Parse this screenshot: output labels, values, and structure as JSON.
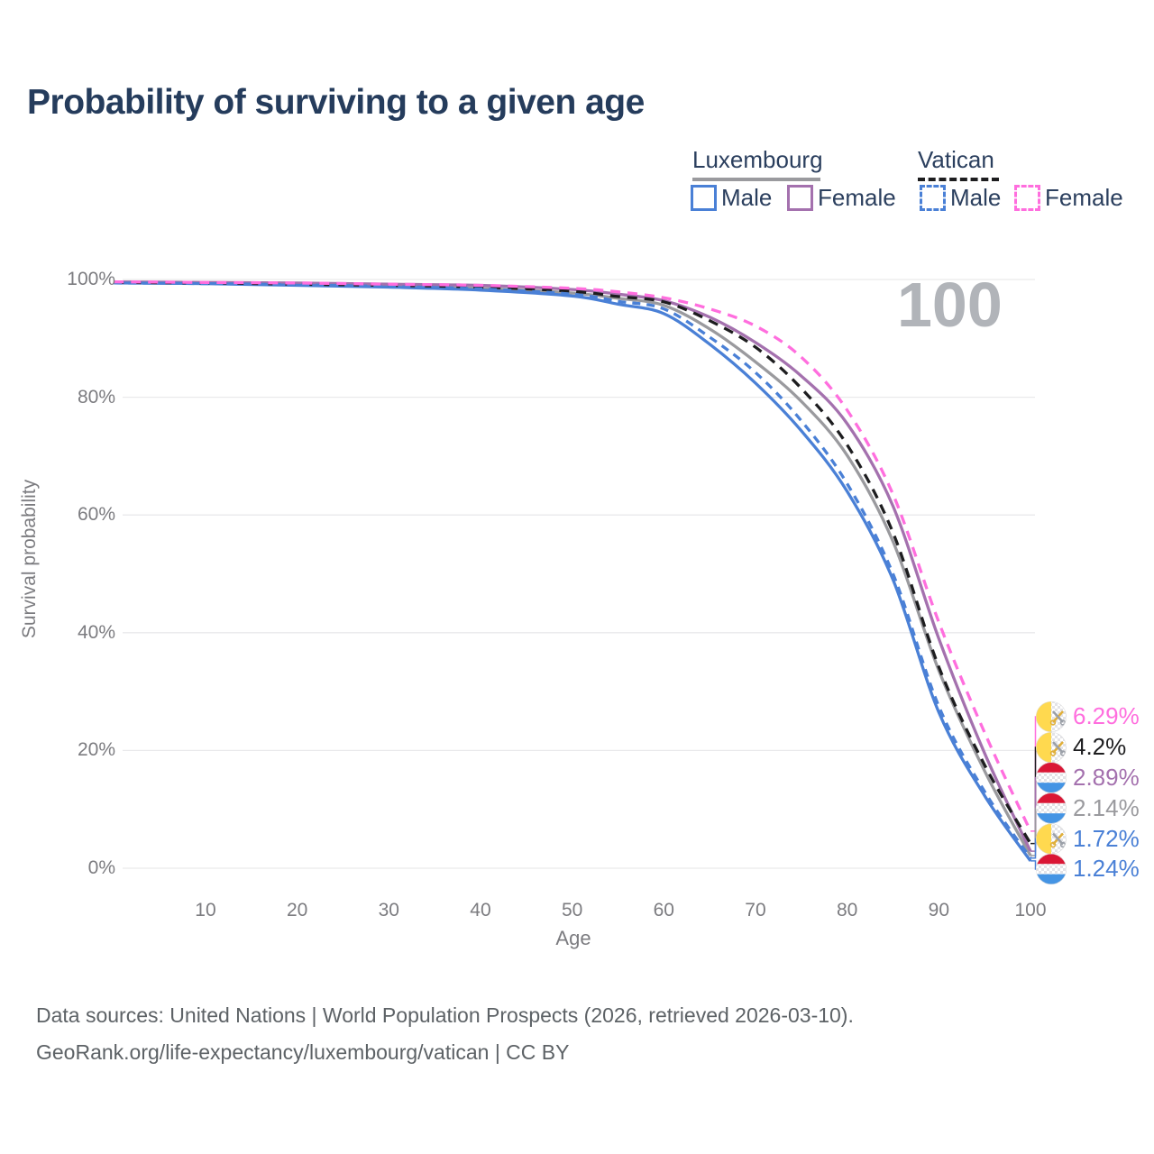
{
  "title": "Probability of surviving to a given age",
  "watermark": "100",
  "legend": {
    "groups": [
      {
        "name": "Luxembourg",
        "underline_series": "luxembourg-total",
        "entries": [
          {
            "label": "Male",
            "series": "luxembourg-male"
          },
          {
            "label": "Female",
            "series": "luxembourg-female"
          }
        ]
      },
      {
        "name": "Vatican",
        "underline_series": "vatican-total",
        "entries": [
          {
            "label": "Male",
            "series": "vatican-male"
          },
          {
            "label": "Female",
            "series": "vatican-female"
          }
        ]
      }
    ]
  },
  "chart_data": {
    "type": "line",
    "title": "Probability of surviving to a given age",
    "xlabel": "Age",
    "ylabel": "Survival probability",
    "xlim": [
      0,
      100
    ],
    "ylim": [
      0,
      100
    ],
    "grid": "horizontal",
    "legend_position": "top-right",
    "x_ticks": [
      "10",
      "20",
      "30",
      "40",
      "50",
      "60",
      "70",
      "80",
      "90",
      "100"
    ],
    "y_ticks": [
      "100%",
      "80%",
      "60%",
      "40%",
      "20%",
      "0%"
    ],
    "x": [
      0,
      10,
      20,
      30,
      40,
      50,
      55,
      60,
      65,
      70,
      75,
      80,
      85,
      90,
      95,
      100
    ],
    "series": [
      {
        "key": "luxembourg-total",
        "name": "Luxembourg Total",
        "color": "#9a9a9e",
        "style": "solid",
        "values": [
          99.5,
          99.4,
          99.2,
          98.9,
          98.5,
          97.7,
          96.8,
          95.6,
          91.6,
          86.0,
          79.3,
          70.1,
          55.5,
          33.6,
          16.5,
          2.14
        ]
      },
      {
        "key": "luxembourg-female",
        "name": "Luxembourg Female",
        "color": "#a471ae",
        "style": "solid",
        "values": [
          99.6,
          99.5,
          99.4,
          99.2,
          99.0,
          98.3,
          97.5,
          96.4,
          93.6,
          89.3,
          83.6,
          75.5,
          61.5,
          39.0,
          19.5,
          2.89
        ]
      },
      {
        "key": "luxembourg-male",
        "name": "Luxembourg Male",
        "color": "#4a80d6",
        "style": "solid",
        "values": [
          99.4,
          99.3,
          99.0,
          98.7,
          98.2,
          97.2,
          95.8,
          94.2,
          89.0,
          82.4,
          74.3,
          64.0,
          49.0,
          26.5,
          12.3,
          1.24
        ]
      },
      {
        "key": "vatican-total",
        "name": "Vatican Total",
        "color": "#1d1d1f",
        "style": "dashed",
        "values": [
          99.5,
          99.4,
          99.2,
          99.0,
          98.7,
          98.0,
          97.1,
          96.2,
          93.0,
          88.5,
          81.5,
          71.9,
          57.0,
          34.2,
          17.5,
          4.2
        ]
      },
      {
        "key": "vatican-male",
        "name": "Vatican Male",
        "color": "#4a80d6",
        "style": "dashed",
        "values": [
          99.4,
          99.3,
          99.1,
          98.8,
          98.4,
          97.5,
          96.3,
          95.0,
          90.2,
          84.2,
          76.0,
          65.3,
          50.0,
          27.5,
          13.0,
          1.72
        ]
      },
      {
        "key": "vatican-female",
        "name": "Vatican Female",
        "color": "#ff6ede",
        "style": "dashed",
        "values": [
          99.6,
          99.5,
          99.4,
          99.2,
          99.0,
          98.5,
          97.9,
          96.9,
          95.0,
          92.1,
          86.8,
          77.8,
          63.5,
          41.8,
          23.0,
          6.29
        ]
      }
    ],
    "end_labels": [
      {
        "series": "vatican-female",
        "flag": "vatican",
        "value": "6.29%"
      },
      {
        "series": "vatican-total",
        "flag": "vatican",
        "value": "4.2%"
      },
      {
        "series": "luxembourg-female",
        "flag": "luxembourg",
        "value": "2.89%"
      },
      {
        "series": "luxembourg-total",
        "flag": "luxembourg",
        "value": "2.14%"
      },
      {
        "series": "vatican-male",
        "flag": "vatican",
        "value": "1.72%"
      },
      {
        "series": "luxembourg-male",
        "flag": "luxembourg",
        "value": "1.24%"
      }
    ],
    "flag_colors": {
      "vatican_yellow": "#ffd94f",
      "luxembourg_red": "#da1635",
      "luxembourg_blue": "#4494e4"
    }
  },
  "footer": {
    "line1": "Data sources: United Nations | World Population Prospects (2026, retrieved 2026-03-10).",
    "line2": "GeoRank.org/life-expectancy/luxembourg/vatican | CC BY"
  }
}
